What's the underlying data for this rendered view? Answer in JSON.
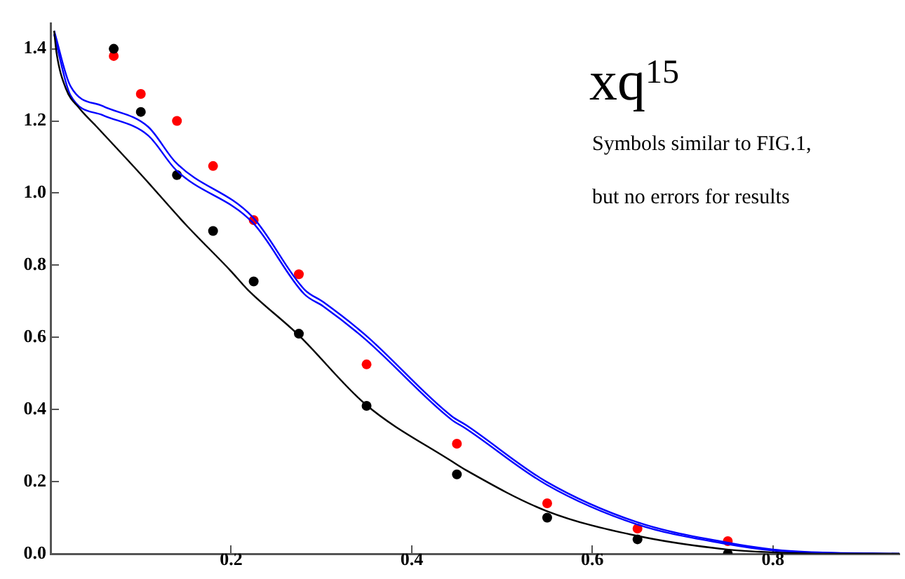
{
  "chart_data": {
    "type": "scatter",
    "title": "xq$^{15}$",
    "annotations": [
      "Symbols similar to FIG.1,",
      "but no errors for results"
    ],
    "xlim": [
      0,
      0.94
    ],
    "xticks": [
      0.2,
      0.4,
      0.6,
      0.8
    ],
    "ylim": [
      0,
      1.47
    ],
    "yticks": [
      {
        "value": 0,
        "label": "0.0"
      },
      {
        "value": 0.2,
        "label": "0.2"
      },
      {
        "value": 0.4,
        "label": "0.4"
      },
      {
        "value": 0.6,
        "label": "0.6"
      },
      {
        "value": 0.8,
        "label": "0.8"
      },
      {
        "value": 1,
        "label": "1.0"
      },
      {
        "value": 1.2,
        "label": "1.2"
      },
      {
        "value": 1.4,
        "label": "1.4"
      }
    ],
    "grid": false,
    "legend": false,
    "series": [
      {
        "type": "line",
        "marker": "none",
        "color": "#000000",
        "x": [
          0.004,
          0.0066,
          0.017,
          0.032,
          0.05,
          0.1,
          0.15,
          0.2,
          0.218,
          0.274,
          0.349,
          0.444,
          0.46,
          0.549,
          0.649,
          0.749,
          0.8,
          0.86,
          0.94
        ],
        "values": [
          1.45,
          1.39,
          1.29,
          1.235,
          1.187,
          1.052,
          0.912,
          0.783,
          0.733,
          0.608,
          0.414,
          0.257,
          0.232,
          0.119,
          0.05,
          0.012,
          0.004,
          0,
          0
        ]
      },
      {
        "type": "line",
        "marker": "none",
        "color": "#0000ff",
        "x": [
          0.004,
          0.022,
          0.058,
          0.108,
          0.139,
          0.224,
          0.281,
          0.302,
          0.348,
          0.444,
          0.46,
          0.549,
          0.649,
          0.749,
          0.8,
          0.85,
          0.94
        ],
        "values": [
          1.45,
          1.297,
          1.241,
          1.184,
          1.084,
          0.933,
          0.733,
          0.698,
          0.608,
          0.382,
          0.357,
          0.2,
          0.088,
          0.031,
          0.012,
          0.004,
          0
        ]
      },
      {
        "type": "line",
        "marker": "none",
        "color": "#0000ff",
        "x": [
          0.004,
          0.022,
          0.058,
          0.108,
          0.139,
          0.224,
          0.281,
          0.302,
          0.348,
          0.444,
          0.46,
          0.549,
          0.649,
          0.749,
          0.8,
          0.85,
          0.94
        ],
        "values": [
          1.44,
          1.272,
          1.216,
          1.16,
          1.064,
          0.918,
          0.72,
          0.686,
          0.596,
          0.372,
          0.347,
          0.192,
          0.082,
          0.027,
          0.009,
          0.003,
          0
        ]
      },
      {
        "type": "scatter",
        "marker": "circle",
        "color": "#000000",
        "x": [
          0.07,
          0.1,
          0.14,
          0.18,
          0.225,
          0.275,
          0.35,
          0.45,
          0.55,
          0.65,
          0.75
        ],
        "values": [
          1.4,
          1.225,
          1.05,
          0.895,
          0.755,
          0.61,
          0.41,
          0.22,
          0.1,
          0.04,
          0
        ]
      },
      {
        "type": "scatter",
        "marker": "circle",
        "color": "#ff0000",
        "x": [
          0.07,
          0.1,
          0.14,
          0.18,
          0.225,
          0.275,
          0.35,
          0.45,
          0.55,
          0.65,
          0.75
        ],
        "values": [
          1.38,
          1.275,
          1.2,
          1.075,
          0.925,
          0.775,
          0.525,
          0.305,
          0.14,
          0.07,
          0.035
        ]
      }
    ]
  }
}
